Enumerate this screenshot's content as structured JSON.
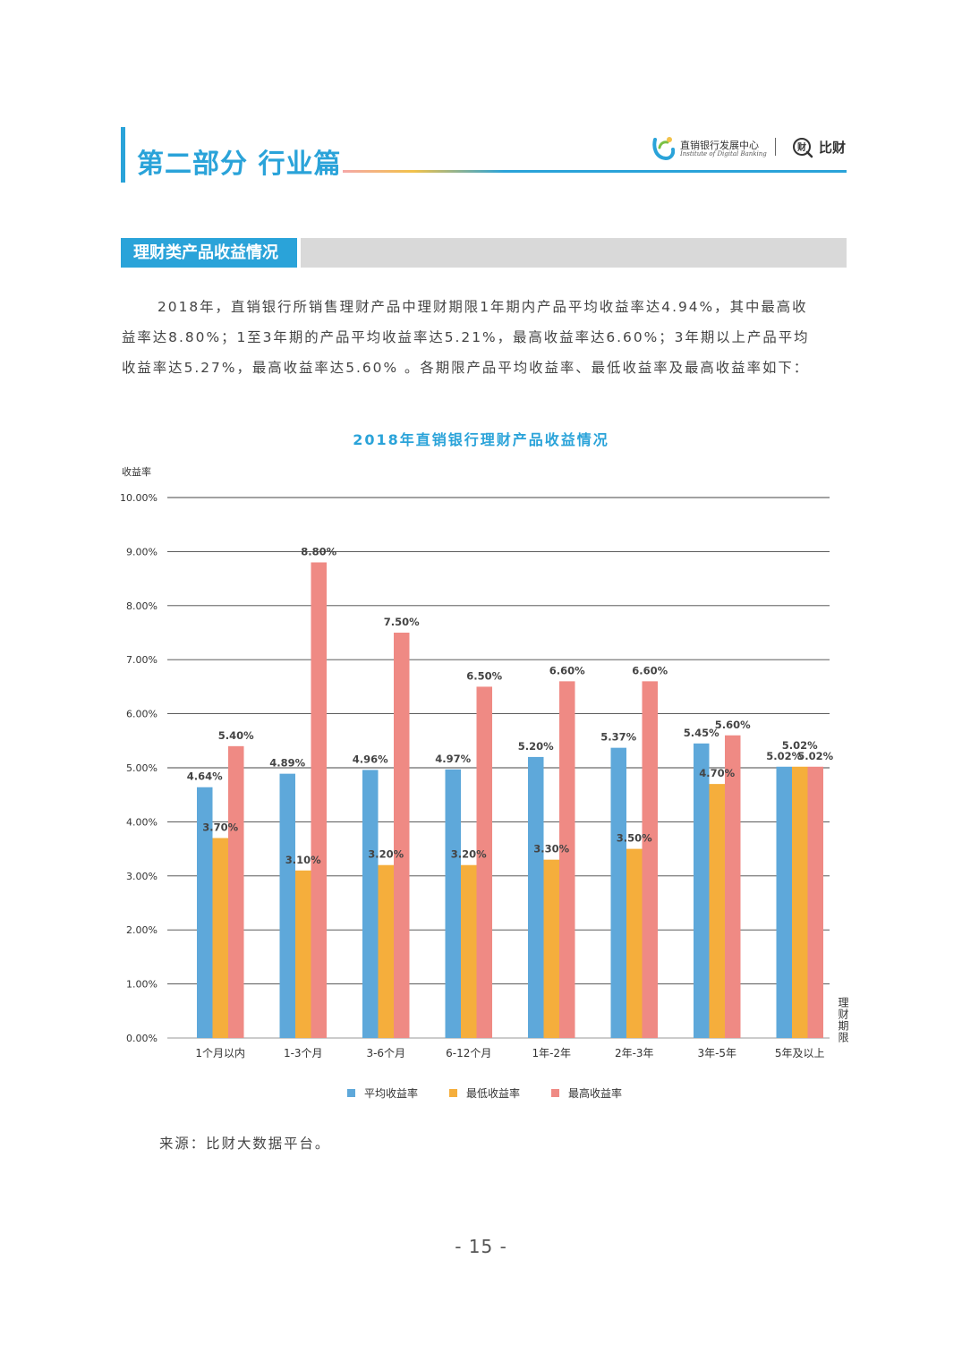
{
  "header": {
    "part_title": "第二部分 行业篇",
    "logo1_name": "直销银行发展中心",
    "logo1_sub": "Institute of Digital Banking",
    "logo2_name": "比财"
  },
  "section": {
    "title": "理财类产品收益情况"
  },
  "paragraph": {
    "lines": [
      "2018年，直销银行所销售理财产品中理财期限1年期内产品平均收益率达4.94%，其中最高收",
      "益率达8.80%；1至3年期的产品平均收益率达5.21%，最高收益率达6.60%；3年期以上产品平均",
      "收益率达5.27%，最高收益率达5.60% 。各期限产品平均收益率、最低收益率及最高收益率如下："
    ]
  },
  "colors": {
    "accent": "#2aa3d9",
    "avg": "#5ea8da",
    "min": "#f5ae3c",
    "max": "#ef8a84"
  },
  "chart_data": {
    "type": "bar",
    "title": "2018年直销银行理财产品收益情况",
    "ylabel": "收益率",
    "xlabel": "理财期限",
    "ylim": [
      0,
      10
    ],
    "yticks": [
      "0.00%",
      "1.00%",
      "2.00%",
      "3.00%",
      "4.00%",
      "5.00%",
      "6.00%",
      "7.00%",
      "8.00%",
      "9.00%",
      "10.00%"
    ],
    "grid": true,
    "legend_position": "bottom",
    "categories": [
      "1个月以内",
      "1-3个月",
      "3-6个月",
      "6-12个月",
      "1年-2年",
      "2年-3年",
      "3年-5年",
      "5年及以上"
    ],
    "series": [
      {
        "name": "平均收益率",
        "color": "#5ea8da",
        "values": [
          4.64,
          4.89,
          4.96,
          4.97,
          5.2,
          5.37,
          5.45,
          5.02
        ],
        "labels": [
          "4.64%",
          "4.89%",
          "4.96%",
          "4.97%",
          "5.20%",
          "5.37%",
          "5.45%",
          "5.02%"
        ]
      },
      {
        "name": "最低收益率",
        "color": "#f5ae3c",
        "values": [
          3.7,
          3.1,
          3.2,
          3.2,
          3.3,
          3.5,
          4.7,
          5.02
        ],
        "labels": [
          "3.70%",
          "3.10%",
          "3.20%",
          "3.20%",
          "3.30%",
          "3.50%",
          "4.70%",
          "5.02%"
        ]
      },
      {
        "name": "最高收益率",
        "color": "#ef8a84",
        "values": [
          5.4,
          8.8,
          7.5,
          6.5,
          6.6,
          6.6,
          5.6,
          5.02
        ],
        "labels": [
          "5.40%",
          "8.80%",
          "7.50%",
          "6.50%",
          "6.60%",
          "6.60%",
          "5.60%",
          "5.02%"
        ]
      }
    ]
  },
  "source": "来源：比财大数据平台。",
  "page_number": "- 15 -"
}
